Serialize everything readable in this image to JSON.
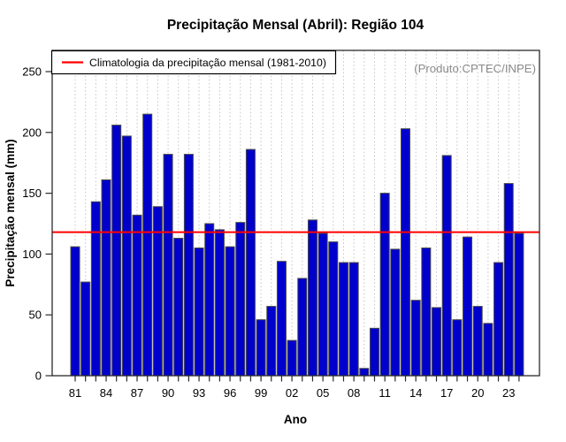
{
  "chart_data": {
    "type": "bar",
    "title": "Precipitação Mensal (Abril): Região 104",
    "xlabel": "Ano",
    "ylabel": "Precipitação mensal (mm)",
    "producer_note": "(Produto:CPTEC/INPE)",
    "categories": [
      "81",
      "82",
      "83",
      "84",
      "85",
      "86",
      "87",
      "88",
      "89",
      "90",
      "91",
      "92",
      "93",
      "94",
      "95",
      "96",
      "97",
      "98",
      "99",
      "00",
      "01",
      "02",
      "03",
      "04",
      "05",
      "06",
      "07",
      "08",
      "09",
      "10",
      "11",
      "12",
      "13",
      "14",
      "15",
      "16",
      "17",
      "18",
      "19",
      "20",
      "21",
      "22",
      "23",
      "24"
    ],
    "values": [
      106,
      77,
      143,
      161,
      206,
      197,
      132,
      215,
      139,
      182,
      113,
      182,
      105,
      125,
      120,
      106,
      126,
      186,
      46,
      57,
      94,
      29,
      80,
      128,
      117,
      110,
      93,
      93,
      6,
      39,
      150,
      104,
      203,
      62,
      105,
      56,
      181,
      46,
      114,
      57,
      43,
      93,
      158,
      117
    ],
    "x_tick_labels": [
      "81",
      "84",
      "87",
      "90",
      "93",
      "96",
      "99",
      "02",
      "05",
      "08",
      "11",
      "14",
      "17",
      "20",
      "23"
    ],
    "x_tick_label_every": 3,
    "yticks": [
      0,
      50,
      100,
      150,
      200,
      250
    ],
    "ylim": [
      0,
      267
    ],
    "grid": {
      "vertical_dotted": true,
      "color": "#c4c4c4"
    },
    "bar_color": "#0000CD",
    "bar_border": "#4a4a4a",
    "climatology": {
      "value": 118,
      "label": "Climatologia da precipitação mensal (1981-2010)",
      "color": "#FF0000"
    },
    "legend_position": "top-left"
  }
}
